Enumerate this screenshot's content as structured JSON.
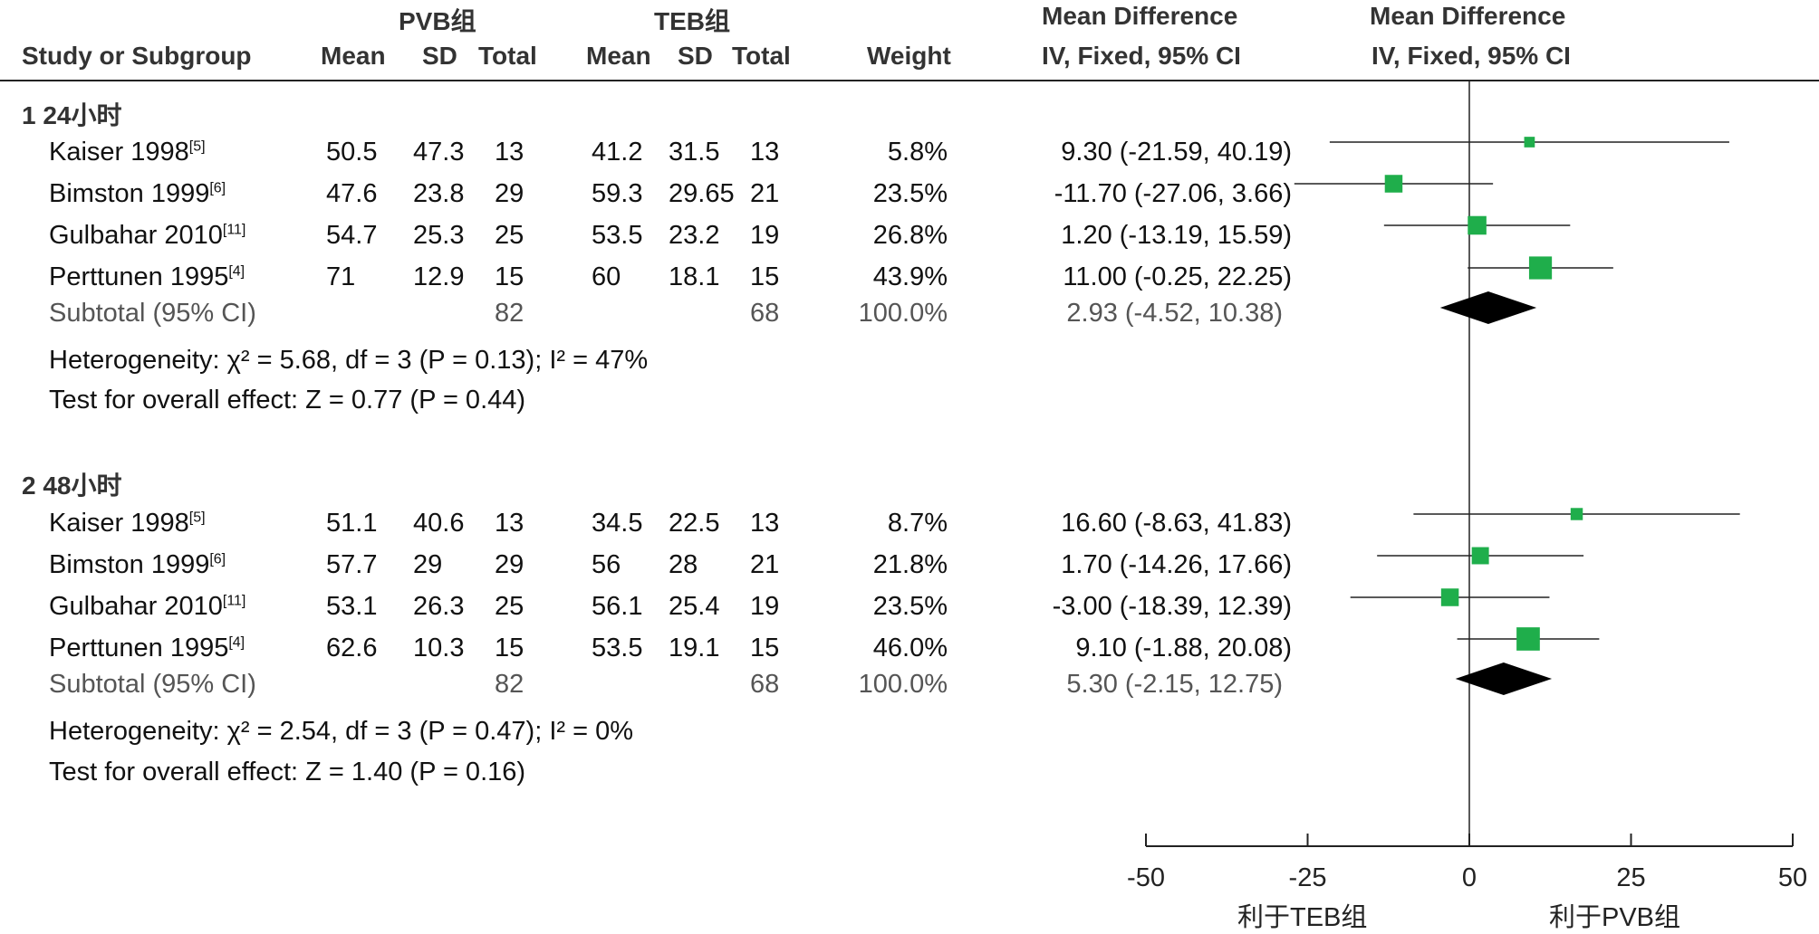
{
  "header": {
    "group1": "PVB组",
    "group2": "TEB组",
    "md_title1": "Mean Difference",
    "md_title2": "Mean Difference",
    "md_sub1": "IV, Fixed, 95% CI",
    "md_sub2": "IV, Fixed, 95% CI",
    "study_col": "Study or Subgroup",
    "mean": "Mean",
    "sd": "SD",
    "total": "Total",
    "weight": "Weight"
  },
  "subgroups": [
    {
      "label": "1 24小时",
      "studies": [
        {
          "name": "Kaiser 1998",
          "ref": "[5]",
          "m1": "50.5",
          "sd1": "47.3",
          "n1": "13",
          "m2": "41.2",
          "sd2": "31.5",
          "n2": "13",
          "weight": "5.8%",
          "ci": "9.30 (-21.59, 40.19)"
        },
        {
          "name": "Bimston 1999",
          "ref": "[6]",
          "m1": "47.6",
          "sd1": "23.8",
          "n1": "29",
          "m2": "59.3",
          "sd2": "29.65",
          "n2": "21",
          "weight": "23.5%",
          "ci": "-11.70 (-27.06, 3.66)"
        },
        {
          "name": "Gulbahar 2010",
          "ref": "[11]",
          "m1": "54.7",
          "sd1": "25.3",
          "n1": "25",
          "m2": "53.5",
          "sd2": "23.2",
          "n2": "19",
          "weight": "26.8%",
          "ci": "1.20 (-13.19, 15.59)"
        },
        {
          "name": "Perttunen 1995",
          "ref": "[4]",
          "m1": "71",
          "sd1": "12.9",
          "n1": "15",
          "m2": "60",
          "sd2": "18.1",
          "n2": "15",
          "weight": "43.9%",
          "ci": "11.00 (-0.25, 22.25)"
        }
      ],
      "subtotal": {
        "label": "Subtotal (95% CI)",
        "n1": "82",
        "n2": "68",
        "weight": "100.0%",
        "ci": "2.93 (-4.52, 10.38)"
      },
      "heterogeneity": "Heterogeneity: χ² = 5.68, df = 3 (P = 0.13); I² = 47%",
      "overall": "Test for overall effect: Z = 0.77 (P = 0.44)"
    },
    {
      "label": "2 48小时",
      "studies": [
        {
          "name": "Kaiser 1998",
          "ref": "[5]",
          "m1": "51.1",
          "sd1": "40.6",
          "n1": "13",
          "m2": "34.5",
          "sd2": "22.5",
          "n2": "13",
          "weight": "8.7%",
          "ci": "16.60 (-8.63, 41.83)"
        },
        {
          "name": "Bimston 1999",
          "ref": "[6]",
          "m1": "57.7",
          "sd1": "29",
          "n1": "29",
          "m2": "56",
          "sd2": "28",
          "n2": "21",
          "weight": "21.8%",
          "ci": "1.70 (-14.26, 17.66)"
        },
        {
          "name": "Gulbahar 2010",
          "ref": "[11]",
          "m1": "53.1",
          "sd1": "26.3",
          "n1": "25",
          "m2": "56.1",
          "sd2": "25.4",
          "n2": "19",
          "weight": "23.5%",
          "ci": "-3.00 (-18.39, 12.39)"
        },
        {
          "name": "Perttunen 1995",
          "ref": "[4]",
          "m1": "62.6",
          "sd1": "10.3",
          "n1": "15",
          "m2": "53.5",
          "sd2": "19.1",
          "n2": "15",
          "weight": "46.0%",
          "ci": "9.10 (-1.88, 20.08)"
        }
      ],
      "subtotal": {
        "label": "Subtotal (95% CI)",
        "n1": "82",
        "n2": "68",
        "weight": "100.0%",
        "ci": "5.30 (-2.15, 12.75)"
      },
      "heterogeneity": "Heterogeneity: χ² = 2.54, df = 3 (P = 0.47); I² = 0%",
      "overall": "Test for overall effect: Z = 1.40 (P = 0.16)"
    }
  ],
  "axis": {
    "favours_left": "利于TEB组",
    "favours_right": "利于PVB组"
  },
  "colors": {
    "marker": "#1fae4b",
    "diamond": "#000000",
    "line": "#222222"
  },
  "chart_data": {
    "type": "forest",
    "xlim": [
      -50,
      50
    ],
    "ticks": [
      -50,
      -25,
      0,
      25,
      50
    ],
    "tick_labels": [
      "-50",
      "-25",
      "0",
      "25",
      "50"
    ],
    "groups": [
      {
        "label": "1 24小时",
        "studies": [
          {
            "name": "Kaiser 1998",
            "md": 9.3,
            "lo": -21.59,
            "hi": 40.19,
            "weight": 5.8
          },
          {
            "name": "Bimston 1999",
            "md": -11.7,
            "lo": -27.06,
            "hi": 3.66,
            "weight": 23.5
          },
          {
            "name": "Gulbahar 2010",
            "md": 1.2,
            "lo": -13.19,
            "hi": 15.59,
            "weight": 26.8
          },
          {
            "name": "Perttunen 1995",
            "md": 11.0,
            "lo": -0.25,
            "hi": 22.25,
            "weight": 43.9
          }
        ],
        "subtotal": {
          "md": 2.93,
          "lo": -4.52,
          "hi": 10.38
        }
      },
      {
        "label": "2 48小时",
        "studies": [
          {
            "name": "Kaiser 1998",
            "md": 16.6,
            "lo": -8.63,
            "hi": 41.83,
            "weight": 8.7
          },
          {
            "name": "Bimston 1999",
            "md": 1.7,
            "lo": -14.26,
            "hi": 17.66,
            "weight": 21.8
          },
          {
            "name": "Gulbahar 2010",
            "md": -3.0,
            "lo": -18.39,
            "hi": 12.39,
            "weight": 23.5
          },
          {
            "name": "Perttunen 1995",
            "md": 9.1,
            "lo": -1.88,
            "hi": 20.08,
            "weight": 46.0
          }
        ],
        "subtotal": {
          "md": 5.3,
          "lo": -2.15,
          "hi": 12.75
        }
      }
    ]
  }
}
